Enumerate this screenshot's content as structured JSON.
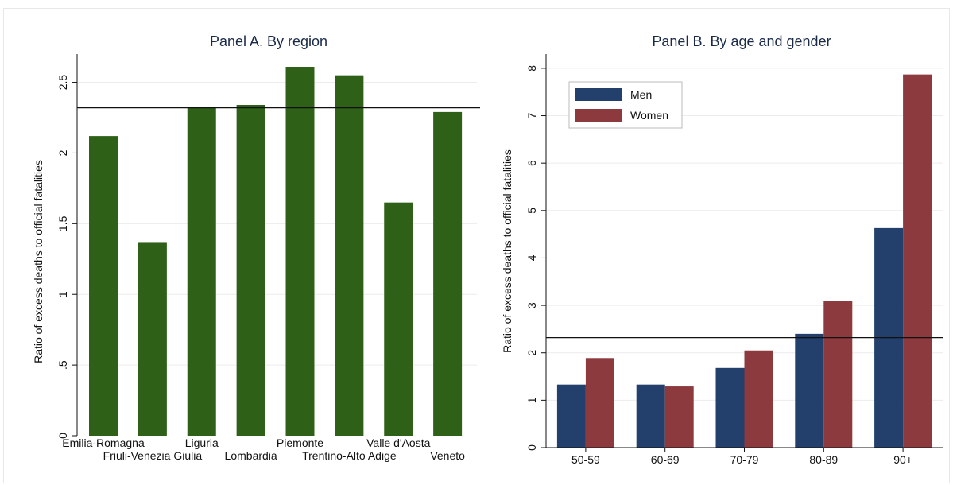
{
  "chart_data": [
    {
      "type": "bar",
      "title": "Panel A. By region",
      "ylabel": "Ratio of excess deaths to official fatalities",
      "xlabel": "",
      "ylim": [
        0,
        2.7
      ],
      "yticks": [
        0,
        0.5,
        1,
        1.5,
        2,
        2.5
      ],
      "ytick_labels": [
        "0",
        ".5",
        "1",
        "1.5",
        "2",
        "2.5"
      ],
      "categories": [
        "Emilia-Romagna",
        "Friuli-Venezia Giulia",
        "Liguria",
        "Lombardia",
        "Piemonte",
        "Trentino-Alto Adige",
        "Valle d'Aosta",
        "Veneto"
      ],
      "values": [
        2.12,
        1.37,
        2.32,
        2.34,
        2.61,
        2.55,
        1.65,
        2.29
      ],
      "reference_line": 2.32,
      "grid": true,
      "bar_color": "#2e6017"
    },
    {
      "type": "bar",
      "title": "Panel B. By age and gender",
      "ylabel": "Ratio of excess deaths to official fatalities",
      "xlabel": "",
      "ylim": [
        0,
        8.3
      ],
      "yticks": [
        0,
        1,
        2,
        3,
        4,
        5,
        6,
        7,
        8
      ],
      "ytick_labels": [
        "0",
        "1",
        "2",
        "3",
        "4",
        "5",
        "6",
        "7",
        "8"
      ],
      "categories": [
        "50-59",
        "60-69",
        "70-79",
        "80-89",
        "90+"
      ],
      "series": [
        {
          "name": "Men",
          "color": "#233f6b",
          "values": [
            1.33,
            1.33,
            1.68,
            2.4,
            4.63
          ]
        },
        {
          "name": "Women",
          "color": "#8c3a3e",
          "values": [
            1.89,
            1.29,
            2.05,
            3.09,
            7.87
          ]
        }
      ],
      "reference_line": 2.32,
      "grid": true,
      "legend_position": "top-left"
    }
  ]
}
